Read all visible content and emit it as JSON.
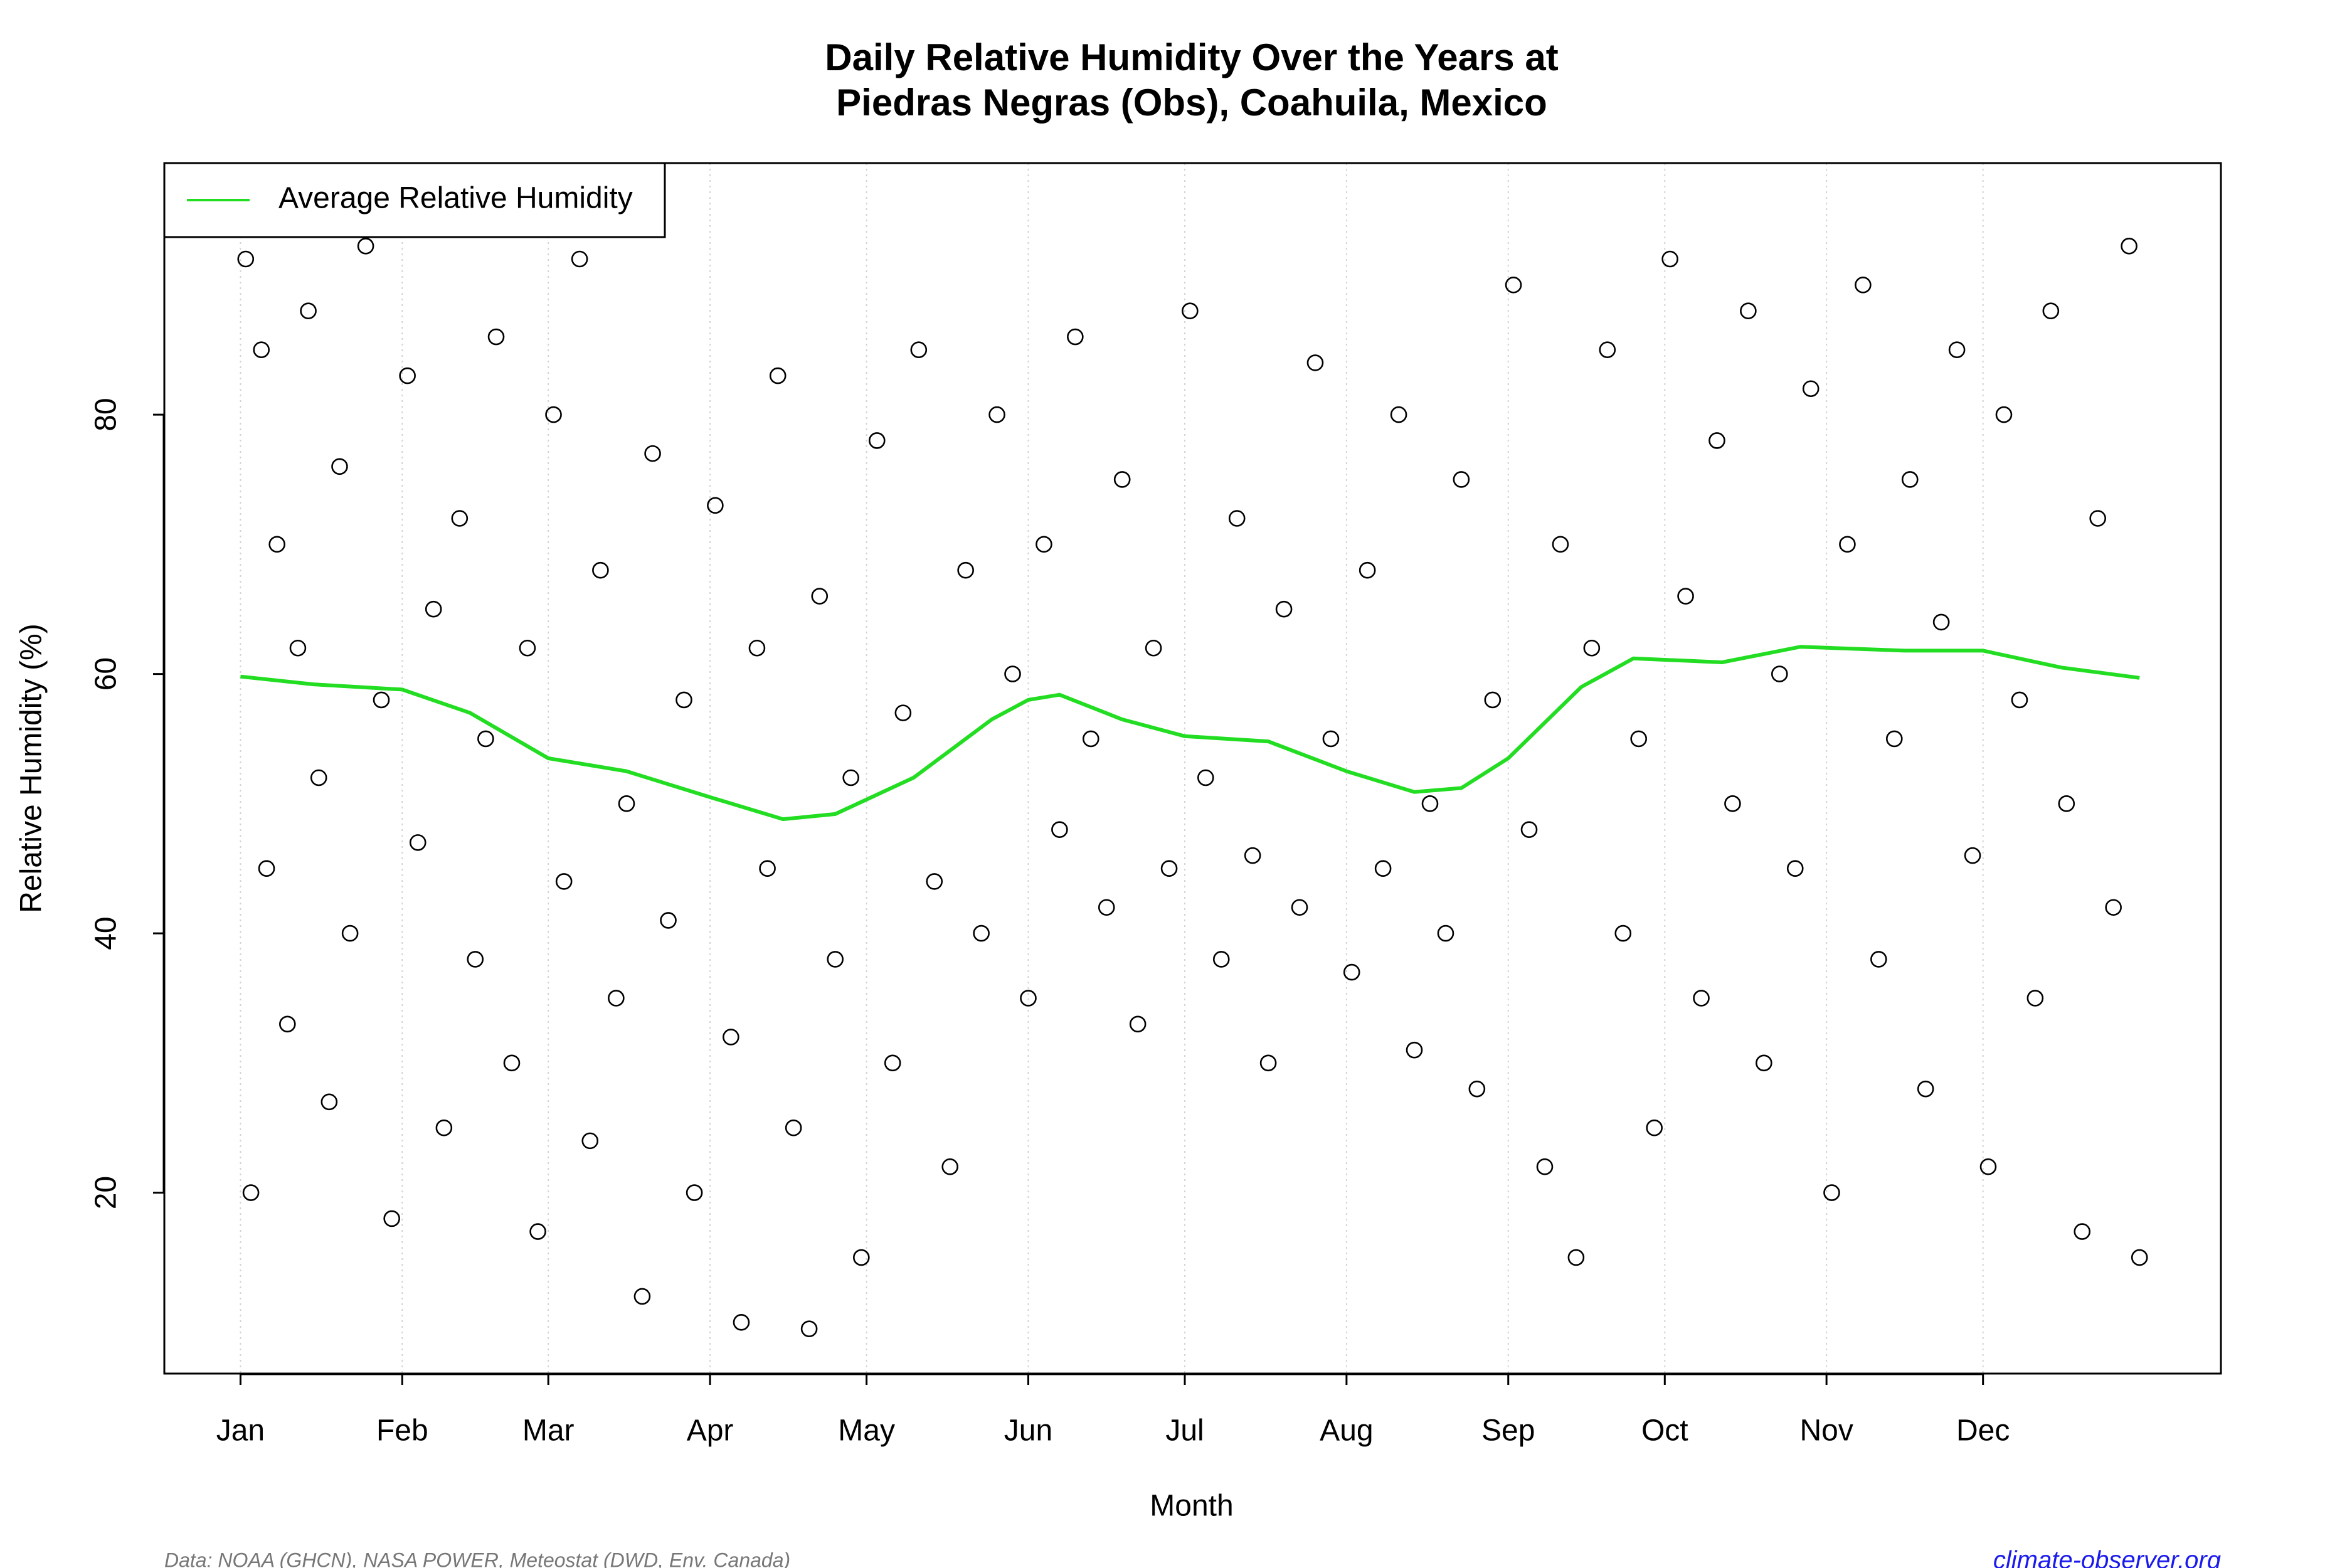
{
  "chart_data": {
    "type": "scatter",
    "title": [
      "Daily Relative Humidity Over the Years at",
      "Piedras Negras (Obs), Coahuila, Mexico"
    ],
    "xlabel": "Month",
    "ylabel": "Relative Humidity  (%)",
    "source": "Data: NOAA (GHCN), NASA POWER, Meteostat (DWD, Env. Canada)",
    "credit": "climate-observer.org",
    "xlim": [
      -13.6,
      380.6
    ],
    "ylim": [
      6.05,
      99.4
    ],
    "xticks": [
      {
        "value": 1,
        "label": "Jan"
      },
      {
        "value": 32,
        "label": "Feb"
      },
      {
        "value": 60,
        "label": "Mar"
      },
      {
        "value": 91,
        "label": "Apr"
      },
      {
        "value": 121,
        "label": "May"
      },
      {
        "value": 152,
        "label": "Jun"
      },
      {
        "value": 182,
        "label": "Jul"
      },
      {
        "value": 213,
        "label": "Aug"
      },
      {
        "value": 244,
        "label": "Sep"
      },
      {
        "value": 274,
        "label": "Oct"
      },
      {
        "value": 305,
        "label": "Nov"
      },
      {
        "value": 335,
        "label": "Dec"
      }
    ],
    "yticks": [
      20,
      40,
      60,
      80
    ],
    "grid": true,
    "legend_position": "top-left",
    "color": "#000000",
    "x": [
      2,
      3,
      5,
      6,
      8,
      10,
      12,
      14,
      16,
      18,
      20,
      22,
      25,
      28,
      30,
      33,
      35,
      38,
      40,
      43,
      46,
      48,
      50,
      53,
      56,
      58,
      61,
      63,
      66,
      68,
      70,
      73,
      75,
      78,
      80,
      83,
      86,
      88,
      92,
      95,
      97,
      100,
      102,
      104,
      107,
      110,
      112,
      115,
      118,
      120,
      123,
      126,
      128,
      131,
      134,
      137,
      140,
      143,
      146,
      149,
      152,
      155,
      158,
      161,
      164,
      167,
      170,
      173,
      176,
      179,
      183,
      186,
      189,
      192,
      195,
      198,
      201,
      204,
      207,
      210,
      214,
      217,
      220,
      223,
      226,
      229,
      232,
      235,
      238,
      241,
      245,
      248,
      251,
      254,
      257,
      260,
      263,
      266,
      269,
      272,
      275,
      278,
      281,
      284,
      287,
      290,
      293,
      296,
      299,
      302,
      306,
      309,
      312,
      315,
      318,
      321,
      324,
      327,
      330,
      333,
      336,
      339,
      342,
      345,
      348,
      351,
      354,
      357,
      360,
      363,
      365
    ],
    "values": [
      92,
      20,
      85,
      45,
      70,
      33,
      62,
      88,
      52,
      27,
      76,
      40,
      93,
      58,
      18,
      83,
      47,
      65,
      25,
      72,
      38,
      55,
      86,
      30,
      62,
      17,
      80,
      44,
      92,
      24,
      68,
      35,
      50,
      12,
      77,
      41,
      58,
      20,
      73,
      32,
      10,
      62,
      45,
      83,
      25,
      9.5,
      66,
      38,
      52,
      15,
      78,
      30,
      57,
      85,
      44,
      22,
      68,
      40,
      80,
      60,
      35,
      70,
      48,
      86,
      55,
      42,
      75,
      33,
      62,
      45,
      88,
      52,
      38,
      72,
      46,
      30,
      65,
      42,
      84,
      55,
      37,
      68,
      45,
      80,
      31,
      50,
      40,
      75,
      28,
      58,
      90,
      48,
      22,
      70,
      15,
      62,
      85,
      40,
      55,
      25,
      92,
      66,
      35,
      78,
      50,
      88,
      30,
      60,
      45,
      82,
      20,
      70,
      90,
      38,
      55,
      75,
      28,
      64,
      85,
      46,
      22,
      80,
      58,
      35,
      88,
      50,
      17,
      72,
      42,
      93,
      15
    ],
    "series": [
      {
        "name": "Average Relative Humidity",
        "color": "#22dd22",
        "x": [
          1,
          15,
          32,
          45,
          60,
          75,
          91,
          105,
          115,
          130,
          145,
          152,
          158,
          170,
          182,
          198,
          213,
          226,
          235,
          244,
          258,
          268,
          285,
          300,
          320,
          335,
          350,
          365
        ],
        "values": [
          59.8,
          59.2,
          58.8,
          57,
          53.5,
          52.5,
          50.5,
          48.8,
          49.2,
          52,
          56.5,
          58,
          58.4,
          56.5,
          55.2,
          54.8,
          52.5,
          50.9,
          51.2,
          53.5,
          59,
          61.2,
          60.9,
          62.1,
          61.8,
          61.8,
          60.5,
          59.7
        ]
      }
    ]
  }
}
